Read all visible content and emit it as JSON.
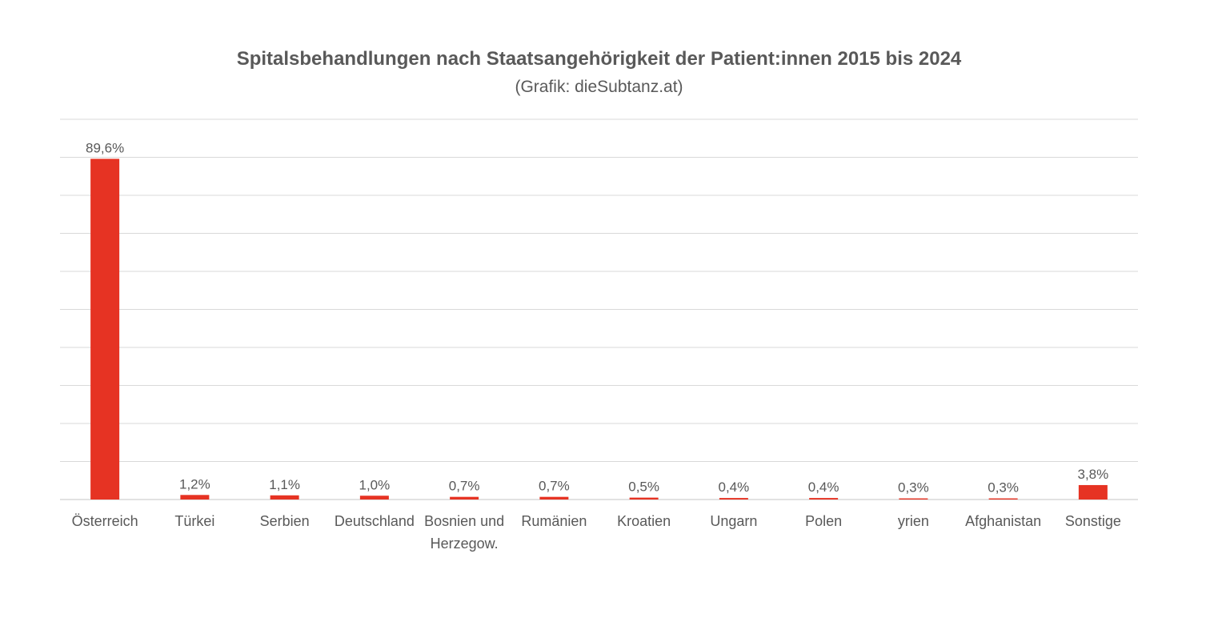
{
  "chart_data": {
    "type": "bar",
    "title": "Spitalsbehandlungen nach Staatsangehörigkeit der Patient:innen 2015 bis 2024",
    "subtitle": "(Grafik: dieSubtanz.at)",
    "categories": [
      "Österreich",
      "Türkei",
      "Serbien",
      "Deutschland",
      "Bosnien und Herzegow.",
      "Rumänien",
      "Kroatien",
      "Ungarn",
      "Polen",
      "yrien",
      "Afghanistan",
      "Sonstige"
    ],
    "values": [
      89.6,
      1.2,
      1.1,
      1.0,
      0.7,
      0.7,
      0.5,
      0.4,
      0.4,
      0.3,
      0.3,
      3.8
    ],
    "data_labels": [
      "89,6%",
      "1,2%",
      "1,1%",
      "1,0%",
      "0,7%",
      "0,7%",
      "0,5%",
      "0,4%",
      "0,4%",
      "0,3%",
      "0,3%",
      "3,8%"
    ],
    "xlabel": "",
    "ylabel": "",
    "ylim": [
      0,
      100
    ],
    "grid_step": 10,
    "grid": true,
    "y_tick_labels_visible": false,
    "bar_color": "#E63323",
    "grid_color": "#D9D9D9"
  }
}
